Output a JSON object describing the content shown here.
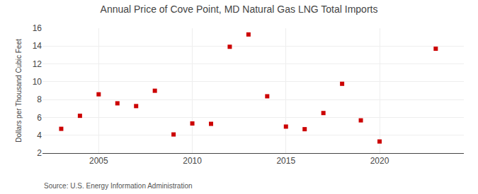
{
  "chart_data": {
    "type": "scatter",
    "title": "Annual Price of Cove Point, MD Natural Gas LNG Total Imports",
    "ylabel": "Dollars per Thousand Cubic Feet",
    "annotations": [
      "Source: U.S. Energy Information Administration"
    ],
    "x": [
      2003,
      2004,
      2005,
      2006,
      2007,
      2008,
      2009,
      2010,
      2011,
      2012,
      2013,
      2014,
      2015,
      2016,
      2017,
      2018,
      2019,
      2020,
      2023
    ],
    "values": [
      4.72,
      6.18,
      8.59,
      7.58,
      7.27,
      8.99,
      4.09,
      5.32,
      5.28,
      13.92,
      15.3,
      8.37,
      4.97,
      4.68,
      6.49,
      9.77,
      5.67,
      3.3,
      13.7
    ],
    "color": "#cc0000",
    "marker": "square",
    "xlim": [
      2002,
      2024.5
    ],
    "xticks": [
      2005,
      2010,
      2015,
      2020
    ],
    "ylim": [
      2,
      16
    ],
    "yticks": [
      2,
      4,
      6,
      8,
      10,
      12,
      14,
      16
    ],
    "grid": true
  }
}
